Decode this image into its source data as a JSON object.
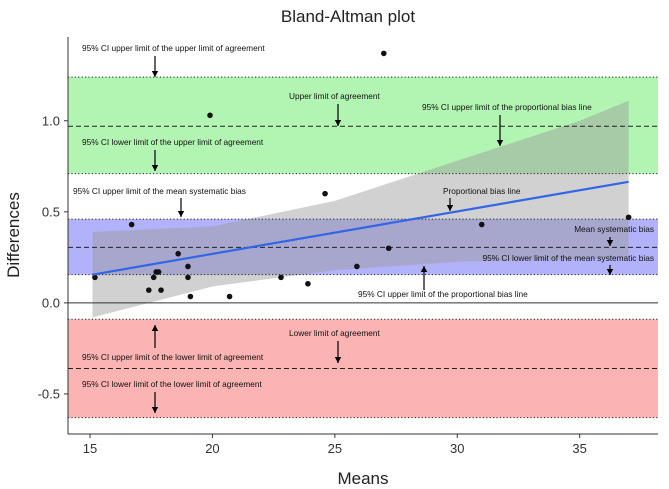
{
  "chart_data": {
    "type": "scatter",
    "title": "Bland-Altman plot",
    "xlabel": "Means",
    "ylabel": "Differences",
    "xlim": [
      14.1,
      38.2
    ],
    "ylim": [
      -0.72,
      1.46
    ],
    "x_ticks": [
      15,
      20,
      25,
      30,
      35
    ],
    "y_ticks": [
      -0.5,
      0.0,
      0.5,
      1.0
    ],
    "x_tick_labels": [
      "15",
      "20",
      "25",
      "30",
      "35"
    ],
    "y_tick_labels": [
      "-0.5",
      "0.0",
      "0.5",
      "1.0"
    ],
    "points": [
      {
        "x": 15.2,
        "y": 0.14
      },
      {
        "x": 16.7,
        "y": 0.43
      },
      {
        "x": 17.4,
        "y": 0.07
      },
      {
        "x": 17.6,
        "y": 0.14
      },
      {
        "x": 17.7,
        "y": 0.17
      },
      {
        "x": 17.8,
        "y": 0.17
      },
      {
        "x": 17.9,
        "y": 0.07
      },
      {
        "x": 18.6,
        "y": 0.27
      },
      {
        "x": 19.0,
        "y": 0.14
      },
      {
        "x": 19.0,
        "y": 0.2
      },
      {
        "x": 19.1,
        "y": 0.035
      },
      {
        "x": 19.9,
        "y": 1.03
      },
      {
        "x": 20.7,
        "y": 0.035
      },
      {
        "x": 22.8,
        "y": 0.14
      },
      {
        "x": 23.9,
        "y": 0.105
      },
      {
        "x": 24.6,
        "y": 0.6
      },
      {
        "x": 25.9,
        "y": 0.2
      },
      {
        "x": 27.0,
        "y": 1.37
      },
      {
        "x": 27.2,
        "y": 0.3
      },
      {
        "x": 31.0,
        "y": 0.43
      },
      {
        "x": 37.0,
        "y": 0.47
      }
    ],
    "bands": [
      {
        "name": "upper limit of agreement CI",
        "ymin": 0.71,
        "ymax": 1.24,
        "color": "#b2f5b2",
        "line": 0.97
      },
      {
        "name": "mean systematic bias CI",
        "ymin": 0.155,
        "ymax": 0.46,
        "color": "#b2b2fa",
        "line": 0.305
      },
      {
        "name": "lower limit of agreement CI",
        "ymin": -0.63,
        "ymax": -0.09,
        "color": "#fcb3b3",
        "line": -0.36
      }
    ],
    "proportional_bias": {
      "color": "#3366e6",
      "line": [
        [
          15.1,
          0.155
        ],
        [
          37.0,
          0.665
        ]
      ],
      "ci_upper": [
        [
          15.1,
          0.39
        ],
        [
          20,
          0.42
        ],
        [
          25,
          0.56
        ],
        [
          30,
          0.78
        ],
        [
          35,
          1.0
        ],
        [
          37.0,
          1.11
        ]
      ],
      "ci_lower": [
        [
          15.1,
          -0.08
        ],
        [
          20,
          0.09
        ],
        [
          25,
          0.18
        ],
        [
          30,
          0.225
        ],
        [
          35,
          0.24
        ],
        [
          37.0,
          0.245
        ]
      ]
    },
    "annotations": [
      {
        "key": "a1",
        "text": "95% CI upper limit of the upper limit of agreement"
      },
      {
        "key": "a2",
        "text": "Upper limit of agreement"
      },
      {
        "key": "a3",
        "text": "95% CI upper limit of the proportional bias line"
      },
      {
        "key": "a4",
        "text": "95% CI lower limit of the upper limit of agreement"
      },
      {
        "key": "a5",
        "text": "95% CI upper limit of the mean systematic bias"
      },
      {
        "key": "a6",
        "text": "Proportional bias line"
      },
      {
        "key": "a7",
        "text": "Mean systematic bias"
      },
      {
        "key": "a8",
        "text": "95% CI lower limit of the mean systematic bias"
      },
      {
        "key": "a9",
        "text": "95% CI upper limit of the proportional bias line"
      },
      {
        "key": "a10",
        "text": "Lower limit of agreement"
      },
      {
        "key": "a11",
        "text": "95% CI upper limit of the lower limit of agreement"
      },
      {
        "key": "a12",
        "text": "95% CI lower limit of the lower limit of agreement"
      }
    ]
  }
}
